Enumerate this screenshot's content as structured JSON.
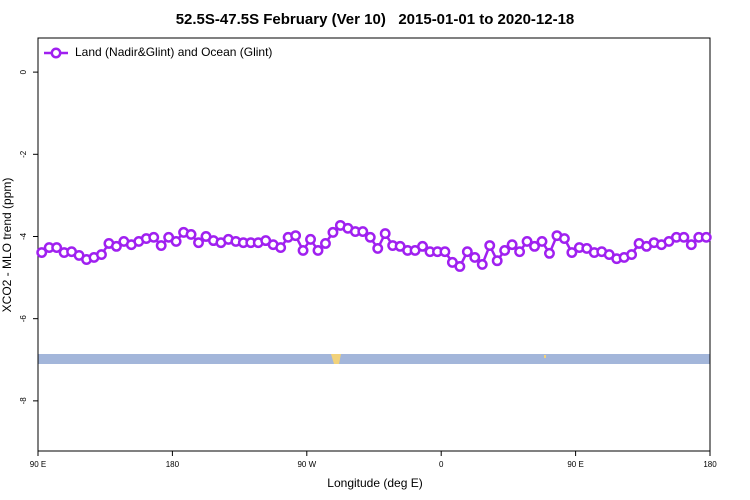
{
  "chart_data": {
    "type": "line",
    "title": "52.5S-47.5S February (Ver 10)   2015-01-01 to 2020-12-18",
    "xlabel": "Longitude (deg E)",
    "ylabel": "XCO2 - MLO trend (ppm)",
    "x": [
      92.5,
      97.5,
      102.5,
      107.5,
      112.5,
      117.5,
      122.5,
      127.5,
      132.5,
      137.5,
      142.5,
      147.5,
      152.5,
      157.5,
      162.5,
      167.5,
      172.5,
      177.5,
      182.5,
      187.5,
      192.5,
      197.5,
      202.5,
      207.5,
      212.5,
      217.5,
      222.5,
      227.5,
      232.5,
      237.5,
      242.5,
      247.5,
      252.5,
      257.5,
      262.5,
      267.5,
      272.5,
      277.5,
      282.5,
      287.5,
      292.5,
      297.5,
      302.5,
      307.5,
      312.5,
      317.5,
      322.5,
      327.5,
      332.5,
      337.5,
      342.5,
      347.5,
      352.5,
      357.5,
      362.5,
      367.5,
      372.5,
      377.5,
      382.5,
      387.5,
      392.5,
      397.5,
      402.5,
      407.5,
      412.5,
      417.5,
      422.5,
      427.5,
      432.5,
      437.5,
      442.5,
      447.5,
      452.5,
      457.5,
      462.5,
      467.5,
      472.5,
      477.5,
      482.5,
      487.5,
      492.5,
      497.5,
      502.5,
      507.5,
      512.5,
      517.5,
      522.5,
      527.5,
      532.5,
      537.5
    ],
    "series": [
      {
        "name": "Land (Nadir&Glint) and Ocean (Glint)",
        "color": "#a020f0",
        "values": [
          -4.39,
          -4.27,
          -4.27,
          -4.39,
          -4.37,
          -4.46,
          -4.56,
          -4.51,
          -4.44,
          -4.17,
          -4.24,
          -4.12,
          -4.2,
          -4.12,
          -4.05,
          -4.02,
          -4.22,
          -4.02,
          -4.12,
          -3.9,
          -3.95,
          -4.15,
          -4.0,
          -4.1,
          -4.15,
          -4.07,
          -4.12,
          -4.15,
          -4.15,
          -4.15,
          -4.1,
          -4.2,
          -4.27,
          -4.02,
          -3.98,
          -4.34,
          -4.07,
          -4.34,
          -4.17,
          -3.9,
          -3.73,
          -3.8,
          -3.88,
          -3.88,
          -4.02,
          -4.29,
          -3.93,
          -4.22,
          -4.24,
          -4.34,
          -4.34,
          -4.24,
          -4.37,
          -4.37,
          -4.37,
          -4.63,
          -4.73,
          -4.37,
          -4.51,
          -4.68,
          -4.22,
          -4.59,
          -4.34,
          -4.2,
          -4.37,
          -4.12,
          -4.24,
          -4.12,
          -4.41,
          -3.98,
          -4.05,
          -4.39,
          -4.27,
          -4.29,
          -4.39,
          -4.37,
          -4.44,
          -4.54,
          -4.51,
          -4.44,
          -4.17,
          -4.24,
          -4.15,
          -4.2,
          -4.12,
          -4.02,
          -4.02,
          -4.2,
          -4.02,
          -4.02
        ]
      }
    ],
    "xlim": [
      90,
      540
    ],
    "xticks": [
      {
        "value": 90,
        "label": "90 E"
      },
      180,
      {
        "value": 270,
        "label": "90 W"
      },
      {
        "value": 360,
        "label": "0"
      },
      {
        "value": 450,
        "label": "90 E"
      },
      180.0001
    ],
    "ylim": [
      -9.22,
      0.83
    ],
    "yticks": [
      0,
      -2,
      -4,
      -6,
      -8
    ],
    "legend": "upper left"
  }
}
